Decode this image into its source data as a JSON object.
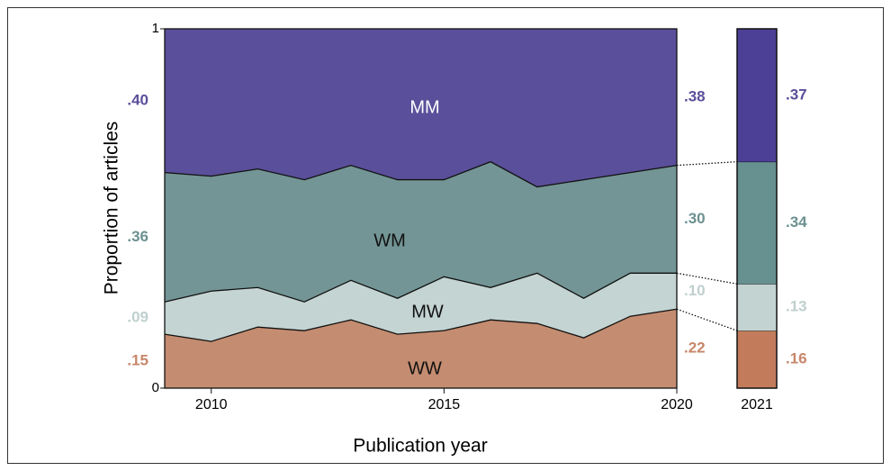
{
  "chart_data": [
    {
      "type": "stacked_area",
      "x": [
        2009,
        2010,
        2011,
        2012,
        2013,
        2014,
        2015,
        2016,
        2017,
        2018,
        2019,
        2020
      ],
      "series": [
        {
          "name": "WW",
          "color": "#c48c70",
          "label_color": "#c7866a",
          "values": [
            0.15,
            0.13,
            0.17,
            0.16,
            0.19,
            0.15,
            0.16,
            0.19,
            0.18,
            0.14,
            0.2,
            0.22
          ],
          "value_labels": [
            ".15",
            null,
            null,
            null,
            null,
            null,
            null,
            null,
            null,
            null,
            null,
            ".22"
          ]
        },
        {
          "name": "MW",
          "color": "#c4d4d2",
          "label_color": "#bfd0ce",
          "values": [
            0.09,
            0.14,
            0.11,
            0.08,
            0.11,
            0.1,
            0.15,
            0.09,
            0.14,
            0.11,
            0.12,
            0.1
          ],
          "value_labels": [
            ".09",
            null,
            null,
            null,
            null,
            null,
            null,
            null,
            null,
            null,
            null,
            ".10"
          ]
        },
        {
          "name": "WM",
          "color": "#739595",
          "label_color": "#6c9090",
          "values": [
            0.36,
            0.32,
            0.33,
            0.34,
            0.32,
            0.33,
            0.27,
            0.35,
            0.24,
            0.33,
            0.28,
            0.3
          ],
          "value_labels": [
            ".36",
            null,
            null,
            null,
            null,
            null,
            null,
            null,
            null,
            null,
            null,
            ".30"
          ]
        },
        {
          "name": "MM",
          "color": "#5a4f9a",
          "label_color": "#5a4f9a",
          "values": [
            0.4,
            0.41,
            0.39,
            0.42,
            0.38,
            0.42,
            0.42,
            0.37,
            0.44,
            0.42,
            0.4,
            0.38
          ],
          "value_labels": [
            ".40",
            null,
            null,
            null,
            null,
            null,
            null,
            null,
            null,
            null,
            null,
            ".38"
          ]
        }
      ],
      "xlim": [
        2009,
        2020
      ],
      "xticks": [
        2010,
        2015,
        2020
      ],
      "ylim": [
        0,
        1
      ],
      "yticks": [
        0,
        1
      ],
      "xlabel": "Publication year",
      "ylabel": "Proportion of articles"
    },
    {
      "type": "stacked_bar",
      "categories": [
        "2021"
      ],
      "series": [
        {
          "name": "WW",
          "color": "#c27c5c",
          "label_color": "#c7866a",
          "values": [
            0.16
          ],
          "value_labels": [
            ".16"
          ]
        },
        {
          "name": "MW",
          "color": "#c3d3d2",
          "label_color": "#bfd0ce",
          "values": [
            0.13
          ],
          "value_labels": [
            ".13"
          ]
        },
        {
          "name": "WM",
          "color": "#679090",
          "label_color": "#6c9090",
          "values": [
            0.34
          ],
          "value_labels": [
            ".34"
          ]
        },
        {
          "name": "MM",
          "color": "#4c3f96",
          "label_color": "#5a4f9a",
          "values": [
            0.37
          ],
          "value_labels": [
            ".37"
          ]
        }
      ],
      "ylim": [
        0,
        1
      ]
    }
  ]
}
